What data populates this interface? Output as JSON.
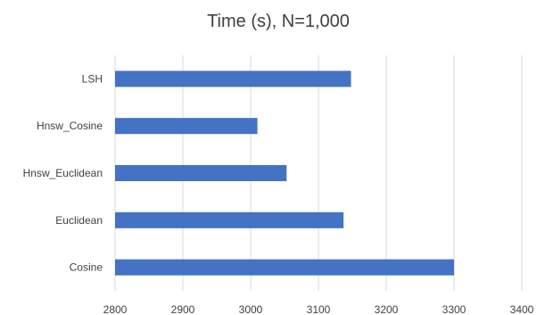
{
  "chart_data": {
    "type": "bar",
    "orientation": "horizontal",
    "title": "Time (s), N=1,000",
    "categories": [
      "LSH",
      "Hnsw_Cosine",
      "Hnsw_Euclidean",
      "Euclidean",
      "Cosine"
    ],
    "values": [
      3148,
      3010,
      3053,
      3137,
      3300
    ],
    "xlim": [
      2800,
      3400
    ],
    "xticks": [
      2800,
      2900,
      3000,
      3100,
      3200,
      3300,
      3400
    ],
    "grid": "vertical",
    "legend": "none",
    "bar_color": "#4472C4",
    "grid_color": "#D9D9D9",
    "text_color": "#404040"
  }
}
